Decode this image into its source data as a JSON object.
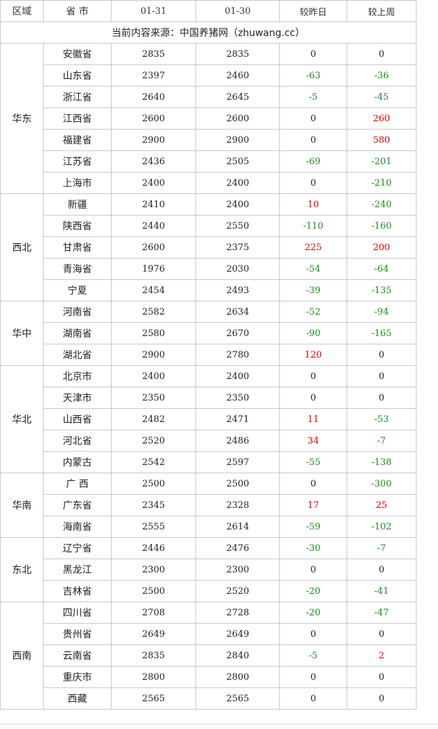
{
  "table": {
    "header": [
      "区域",
      "省 市",
      "01-31",
      "01-30",
      "较昨日",
      "较上周"
    ],
    "source": "当前内容来源：中国养猪网（zhuwang.cc）",
    "regions": [
      {
        "name": "华东",
        "rows": [
          [
            "安徽省",
            2835,
            2835,
            0,
            0
          ],
          [
            "山东省",
            2397,
            2460,
            -63,
            -36
          ],
          [
            "浙江省",
            2640,
            2645,
            -5,
            -45
          ],
          [
            "江西省",
            2600,
            2600,
            0,
            260
          ],
          [
            "福建省",
            2900,
            2900,
            0,
            580
          ],
          [
            "江苏省",
            2436,
            2505,
            -69,
            -201
          ],
          [
            "上海市",
            2400,
            2400,
            0,
            -210
          ]
        ]
      },
      {
        "name": "西北",
        "rows": [
          [
            "新疆",
            2410,
            2400,
            10,
            -240
          ],
          [
            "陕西省",
            2440,
            2550,
            -110,
            -160
          ],
          [
            "甘肃省",
            2600,
            2375,
            225,
            200
          ],
          [
            "青海省",
            1976,
            2030,
            -54,
            -64
          ],
          [
            "宁夏",
            2454,
            2493,
            -39,
            -135
          ]
        ]
      },
      {
        "name": "华中",
        "rows": [
          [
            "河南省",
            2582,
            2634,
            -52,
            -94
          ],
          [
            "湖南省",
            2580,
            2670,
            -90,
            -165
          ],
          [
            "湖北省",
            2900,
            2780,
            120,
            0
          ]
        ]
      },
      {
        "name": "华北",
        "rows": [
          [
            "北京市",
            2400,
            2400,
            0,
            0
          ],
          [
            "天津市",
            2350,
            2350,
            0,
            0
          ],
          [
            "山西省",
            2482,
            2471,
            11,
            -53
          ],
          [
            "河北省",
            2520,
            2486,
            34,
            -7
          ],
          [
            "内蒙古",
            2542,
            2597,
            -55,
            -138
          ]
        ]
      },
      {
        "name": "华南",
        "rows": [
          [
            "广 西",
            2500,
            2500,
            0,
            -300
          ],
          [
            "广东省",
            2345,
            2328,
            17,
            25
          ],
          [
            "海南省",
            2555,
            2614,
            -59,
            -102
          ]
        ]
      },
      {
        "name": "东北",
        "rows": [
          [
            "辽宁省",
            2446,
            2476,
            -30,
            -7
          ],
          [
            "黑龙江",
            2300,
            2300,
            0,
            0
          ],
          [
            "吉林省",
            2500,
            2520,
            -20,
            -41
          ]
        ]
      },
      {
        "name": "西南",
        "rows": [
          [
            "四川省",
            2708,
            2728,
            -20,
            -47
          ],
          [
            "贵州省",
            2649,
            2649,
            0,
            0
          ],
          [
            "云南省",
            2835,
            2840,
            -5,
            2
          ],
          [
            "重庆市",
            2800,
            2800,
            0,
            0
          ],
          [
            "西藏",
            2565,
            2565,
            0,
            0
          ]
        ]
      }
    ]
  }
}
